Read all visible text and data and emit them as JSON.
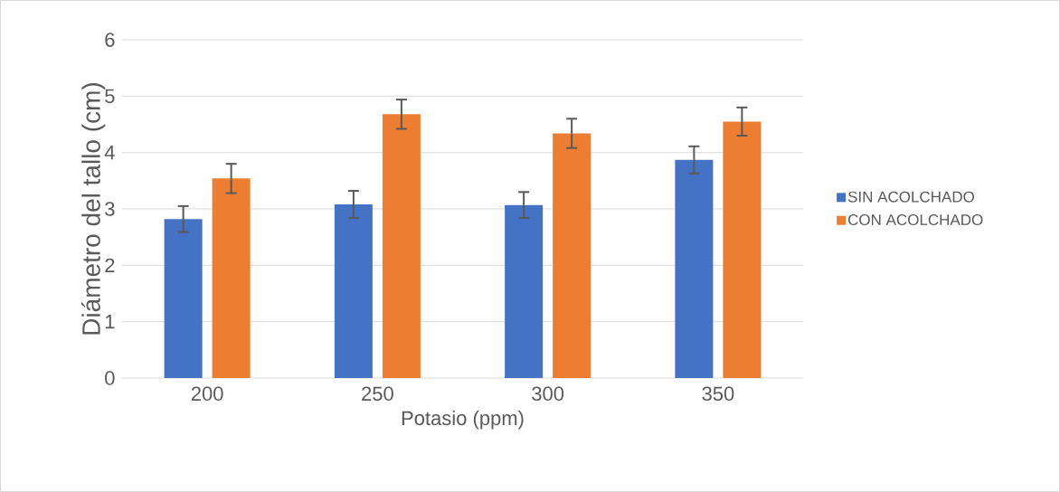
{
  "chart_data": {
    "type": "bar",
    "xlabel": "Potasio (ppm)",
    "ylabel": "Diámetro del tallo (cm)",
    "categories": [
      "200",
      "250",
      "300",
      "350"
    ],
    "series": [
      {
        "name": "SIN ACOLCHADO",
        "color": "#4472c4",
        "values": [
          2.82,
          3.08,
          3.07,
          3.87
        ],
        "errors": [
          0.23,
          0.24,
          0.23,
          0.24
        ]
      },
      {
        "name": "CON ACOLCHADO",
        "color": "#ed7d31",
        "values": [
          3.54,
          4.68,
          4.34,
          4.55
        ],
        "errors": [
          0.26,
          0.26,
          0.26,
          0.25
        ]
      }
    ],
    "ylim": [
      0,
      6
    ],
    "yticks": [
      0,
      1,
      2,
      3,
      4,
      5,
      6
    ],
    "grid": "y",
    "legend": "right"
  }
}
